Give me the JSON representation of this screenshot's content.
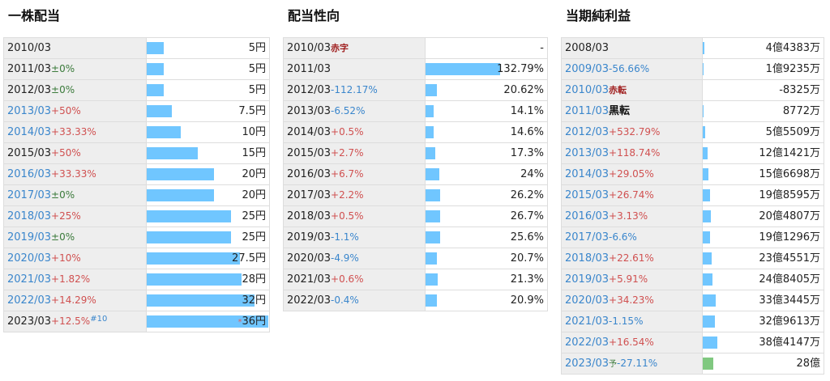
{
  "panels": [
    {
      "title": "一株配当",
      "scale_max": 36,
      "rows": [
        {
          "year": "2010/03",
          "link": false,
          "change": "",
          "dir": "",
          "tag": "",
          "note": "",
          "value_text": "5円",
          "star": "",
          "bar": 5
        },
        {
          "year": "2011/03",
          "link": false,
          "change": "±0%",
          "dir": "flat",
          "tag": "",
          "note": "",
          "value_text": "5円",
          "star": "",
          "bar": 5
        },
        {
          "year": "2012/03",
          "link": false,
          "change": "±0%",
          "dir": "flat",
          "tag": "",
          "note": "",
          "value_text": "5円",
          "star": "",
          "bar": 5
        },
        {
          "year": "2013/03",
          "link": true,
          "change": "+50%",
          "dir": "up",
          "tag": "",
          "note": "",
          "value_text": "7.5円",
          "star": "",
          "bar": 7.5
        },
        {
          "year": "2014/03",
          "link": true,
          "change": "+33.33%",
          "dir": "up",
          "tag": "",
          "note": "",
          "value_text": "10円",
          "star": "",
          "bar": 10
        },
        {
          "year": "2015/03",
          "link": false,
          "change": "+50%",
          "dir": "up",
          "tag": "",
          "note": "",
          "value_text": "15円",
          "star": "",
          "bar": 15
        },
        {
          "year": "2016/03",
          "link": true,
          "change": "+33.33%",
          "dir": "up",
          "tag": "",
          "note": "",
          "value_text": "20円",
          "star": "",
          "bar": 20
        },
        {
          "year": "2017/03",
          "link": true,
          "change": "±0%",
          "dir": "flat",
          "tag": "",
          "note": "",
          "value_text": "20円",
          "star": "",
          "bar": 20
        },
        {
          "year": "2018/03",
          "link": true,
          "change": "+25%",
          "dir": "up",
          "tag": "",
          "note": "",
          "value_text": "25円",
          "star": "",
          "bar": 25
        },
        {
          "year": "2019/03",
          "link": true,
          "change": "±0%",
          "dir": "flat",
          "tag": "",
          "note": "",
          "value_text": "25円",
          "star": "",
          "bar": 25
        },
        {
          "year": "2020/03",
          "link": true,
          "change": "+10%",
          "dir": "up",
          "tag": "",
          "note": "",
          "value_text": "27.5円",
          "star": "",
          "bar": 27.5
        },
        {
          "year": "2021/03",
          "link": true,
          "change": "+1.82%",
          "dir": "up",
          "tag": "",
          "note": "",
          "value_text": "28円",
          "star": "",
          "bar": 28
        },
        {
          "year": "2022/03",
          "link": true,
          "change": "+14.29%",
          "dir": "up",
          "tag": "",
          "note": "",
          "value_text": "32円",
          "star": "",
          "bar": 32
        },
        {
          "year": "2023/03",
          "link": false,
          "change": "+12.5%",
          "dir": "up",
          "tag": "",
          "note": "#10",
          "value_text": "36円",
          "star": "*",
          "bar": 36
        }
      ]
    },
    {
      "title": "配当性向",
      "scale_max": 132.79,
      "rows": [
        {
          "year": "2010/03",
          "link": false,
          "change": "",
          "dir": "",
          "tag": "赤字",
          "note": "",
          "value_text": "-",
          "star": "",
          "bar": 0
        },
        {
          "year": "2011/03",
          "link": false,
          "change": "",
          "dir": "",
          "tag": "",
          "note": "",
          "value_text": "132.79%",
          "star": "",
          "bar": 132.79
        },
        {
          "year": "2012/03",
          "link": false,
          "change": "-112.17%",
          "dir": "down",
          "tag": "",
          "note": "",
          "value_text": "20.62%",
          "star": "",
          "bar": 20.62
        },
        {
          "year": "2013/03",
          "link": false,
          "change": "-6.52%",
          "dir": "down",
          "tag": "",
          "note": "",
          "value_text": "14.1%",
          "star": "",
          "bar": 14.1
        },
        {
          "year": "2014/03",
          "link": false,
          "change": "+0.5%",
          "dir": "up",
          "tag": "",
          "note": "",
          "value_text": "14.6%",
          "star": "",
          "bar": 14.6
        },
        {
          "year": "2015/03",
          "link": false,
          "change": "+2.7%",
          "dir": "up",
          "tag": "",
          "note": "",
          "value_text": "17.3%",
          "star": "",
          "bar": 17.3
        },
        {
          "year": "2016/03",
          "link": false,
          "change": "+6.7%",
          "dir": "up",
          "tag": "",
          "note": "",
          "value_text": "24%",
          "star": "",
          "bar": 24
        },
        {
          "year": "2017/03",
          "link": false,
          "change": "+2.2%",
          "dir": "up",
          "tag": "",
          "note": "",
          "value_text": "26.2%",
          "star": "",
          "bar": 26.2
        },
        {
          "year": "2018/03",
          "link": false,
          "change": "+0.5%",
          "dir": "up",
          "tag": "",
          "note": "",
          "value_text": "26.7%",
          "star": "",
          "bar": 26.7
        },
        {
          "year": "2019/03",
          "link": false,
          "change": "-1.1%",
          "dir": "down",
          "tag": "",
          "note": "",
          "value_text": "25.6%",
          "star": "",
          "bar": 25.6
        },
        {
          "year": "2020/03",
          "link": false,
          "change": "-4.9%",
          "dir": "down",
          "tag": "",
          "note": "",
          "value_text": "20.7%",
          "star": "",
          "bar": 20.7
        },
        {
          "year": "2021/03",
          "link": false,
          "change": "+0.6%",
          "dir": "up",
          "tag": "",
          "note": "",
          "value_text": "21.3%",
          "star": "",
          "bar": 21.3
        },
        {
          "year": "2022/03",
          "link": false,
          "change": "-0.4%",
          "dir": "down",
          "tag": "",
          "note": "",
          "value_text": "20.9%",
          "star": "",
          "bar": 20.9
        }
      ]
    },
    {
      "title": "当期純利益",
      "scale_max": 384147,
      "rows": [
        {
          "year": "2008/03",
          "link": false,
          "change": "",
          "dir": "",
          "tag": "",
          "tagClass": "",
          "note": "",
          "yo": "",
          "value_text": "4億4383万",
          "star": "",
          "bar": 44383,
          "forecast": false
        },
        {
          "year": "2009/03",
          "link": true,
          "change": "-56.66%",
          "dir": "down",
          "tag": "",
          "tagClass": "",
          "note": "",
          "yo": "",
          "value_text": "1億9235万",
          "star": "",
          "bar": 19235,
          "forecast": false
        },
        {
          "year": "2010/03",
          "link": true,
          "change": "",
          "dir": "",
          "tag": "赤転",
          "tagClass": "",
          "note": "",
          "yo": "",
          "value_text": "-8325万",
          "star": "",
          "bar": 0,
          "forecast": false
        },
        {
          "year": "2011/03",
          "link": true,
          "change": "",
          "dir": "",
          "tag": "黒転",
          "tagClass": "black",
          "note": "",
          "yo": "",
          "value_text": "8772万",
          "star": "",
          "bar": 8772,
          "forecast": false
        },
        {
          "year": "2012/03",
          "link": true,
          "change": "+532.79%",
          "dir": "up",
          "tag": "",
          "tagClass": "",
          "note": "",
          "yo": "",
          "value_text": "5億5509万",
          "star": "",
          "bar": 55509,
          "forecast": false
        },
        {
          "year": "2013/03",
          "link": true,
          "change": "+118.74%",
          "dir": "up",
          "tag": "",
          "tagClass": "",
          "note": "",
          "yo": "",
          "value_text": "12億1421万",
          "star": "",
          "bar": 121421,
          "forecast": false
        },
        {
          "year": "2014/03",
          "link": true,
          "change": "+29.05%",
          "dir": "up",
          "tag": "",
          "tagClass": "",
          "note": "",
          "yo": "",
          "value_text": "15億6698万",
          "star": "",
          "bar": 156698,
          "forecast": false
        },
        {
          "year": "2015/03",
          "link": true,
          "change": "+26.74%",
          "dir": "up",
          "tag": "",
          "tagClass": "",
          "note": "",
          "yo": "",
          "value_text": "19億8595万",
          "star": "",
          "bar": 198595,
          "forecast": false
        },
        {
          "year": "2016/03",
          "link": true,
          "change": "+3.13%",
          "dir": "up",
          "tag": "",
          "tagClass": "",
          "note": "",
          "yo": "",
          "value_text": "20億4807万",
          "star": "",
          "bar": 204807,
          "forecast": false
        },
        {
          "year": "2017/03",
          "link": true,
          "change": "-6.6%",
          "dir": "down",
          "tag": "",
          "tagClass": "",
          "note": "",
          "yo": "",
          "value_text": "19億1296万",
          "star": "",
          "bar": 191296,
          "forecast": false
        },
        {
          "year": "2018/03",
          "link": true,
          "change": "+22.61%",
          "dir": "up",
          "tag": "",
          "tagClass": "",
          "note": "",
          "yo": "",
          "value_text": "23億4551万",
          "star": "",
          "bar": 234551,
          "forecast": false
        },
        {
          "year": "2019/03",
          "link": true,
          "change": "+5.91%",
          "dir": "up",
          "tag": "",
          "tagClass": "",
          "note": "",
          "yo": "",
          "value_text": "24億8405万",
          "star": "",
          "bar": 248405,
          "forecast": false
        },
        {
          "year": "2020/03",
          "link": true,
          "change": "+34.23%",
          "dir": "up",
          "tag": "",
          "tagClass": "",
          "note": "",
          "yo": "",
          "value_text": "33億3445万",
          "star": "",
          "bar": 333445,
          "forecast": false
        },
        {
          "year": "2021/03",
          "link": true,
          "change": "-1.15%",
          "dir": "down",
          "tag": "",
          "tagClass": "",
          "note": "",
          "yo": "",
          "value_text": "32億9613万",
          "star": "",
          "bar": 329613,
          "forecast": false
        },
        {
          "year": "2022/03",
          "link": true,
          "change": "+16.54%",
          "dir": "up",
          "tag": "",
          "tagClass": "",
          "note": "",
          "yo": "",
          "value_text": "38億4147万",
          "star": "",
          "bar": 384147,
          "forecast": false
        },
        {
          "year": "2023/03",
          "link": true,
          "change": "-27.11%",
          "dir": "down",
          "tag": "",
          "tagClass": "",
          "note": "",
          "yo": "予",
          "value_text": "28億",
          "star": "",
          "bar": 280000,
          "forecast": true
        }
      ]
    }
  ]
}
